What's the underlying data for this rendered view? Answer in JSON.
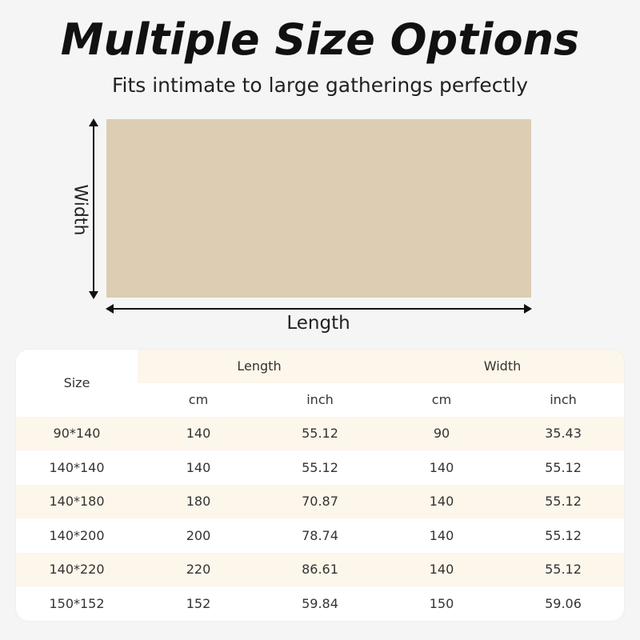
{
  "title": "Multiple Size Options",
  "subtitle": "Fits intimate to large gatherings perfectly",
  "diagram": {
    "width_label": "Width",
    "length_label": "Length",
    "fabric_color": "#dccdb3"
  },
  "table": {
    "size_header": "Size",
    "length_header": "Length",
    "width_header": "Width",
    "units": [
      "cm",
      "inch",
      "cm",
      "inch"
    ],
    "rows": [
      [
        "90*140",
        "140",
        "55.12",
        "90",
        "35.43"
      ],
      [
        "140*140",
        "140",
        "55.12",
        "140",
        "55.12"
      ],
      [
        "140*180",
        "180",
        "70.87",
        "140",
        "55.12"
      ],
      [
        "140*200",
        "200",
        "78.74",
        "140",
        "55.12"
      ],
      [
        "140*220",
        "220",
        "86.61",
        "140",
        "55.12"
      ],
      [
        "150*152",
        "152",
        "59.84",
        "150",
        "59.06"
      ]
    ]
  }
}
